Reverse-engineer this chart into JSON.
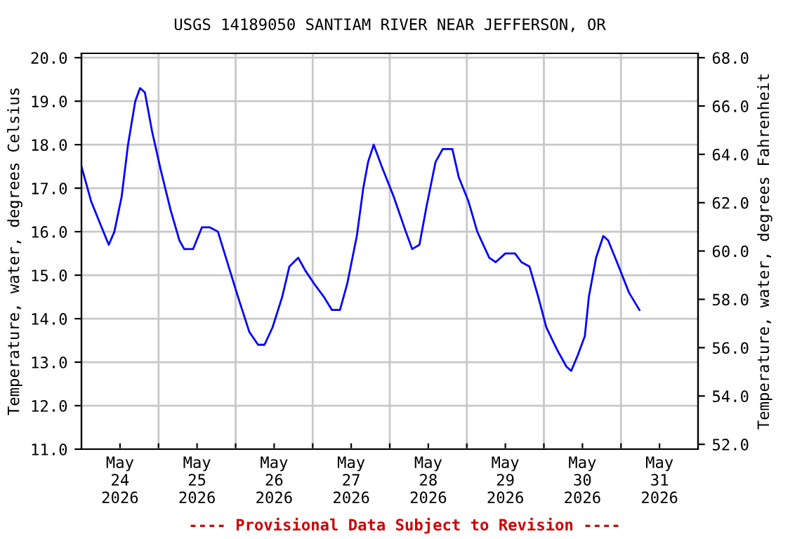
{
  "chart_data": {
    "type": "line",
    "title": "USGS 14189050 SANTIAM RIVER NEAR JEFFERSON, OR",
    "ylabel": "Temperature, water, degrees Celsius",
    "y2label": "Temperature, water, degrees Fahrenheit",
    "annotations": [
      "---- Provisional Data Subject to Revision ----"
    ],
    "x": [
      "2026-05-24T00:00",
      "2026-05-24T03:00",
      "2026-05-24T06:00",
      "2026-05-24T08:30",
      "2026-05-24T10:15",
      "2026-05-24T12:30",
      "2026-05-24T14:30",
      "2026-05-24T16:45",
      "2026-05-24T18:15",
      "2026-05-24T19:45",
      "2026-05-24T22:00",
      "2026-05-25T00:45",
      "2026-05-25T03:45",
      "2026-05-25T06:30",
      "2026-05-25T08:00",
      "2026-05-25T10:45",
      "2026-05-25T13:30",
      "2026-05-25T16:00",
      "2026-05-25T18:30",
      "2026-05-25T21:00",
      "2026-05-26T00:45",
      "2026-05-26T04:15",
      "2026-05-26T07:00",
      "2026-05-26T09:00",
      "2026-05-26T11:30",
      "2026-05-26T14:30",
      "2026-05-26T16:45",
      "2026-05-26T19:30",
      "2026-05-26T21:45",
      "2026-05-27T00:30",
      "2026-05-27T03:30",
      "2026-05-27T06:00",
      "2026-05-27T08:30",
      "2026-05-27T10:45",
      "2026-05-27T13:45",
      "2026-05-27T15:45",
      "2026-05-27T17:15",
      "2026-05-27T19:00",
      "2026-05-27T21:30",
      "2026-05-28T01:15",
      "2026-05-28T05:00",
      "2026-05-28T07:00",
      "2026-05-28T09:15",
      "2026-05-28T11:30",
      "2026-05-28T14:15",
      "2026-05-28T16:30",
      "2026-05-28T19:30",
      "2026-05-28T21:30",
      "2026-05-29T00:30",
      "2026-05-29T03:15",
      "2026-05-29T07:00",
      "2026-05-29T09:00",
      "2026-05-29T12:00",
      "2026-05-29T15:00",
      "2026-05-29T17:00",
      "2026-05-29T19:30",
      "2026-05-29T22:15",
      "2026-05-30T00:45",
      "2026-05-30T04:00",
      "2026-05-30T07:00",
      "2026-05-30T08:30",
      "2026-05-30T10:30",
      "2026-05-30T12:45",
      "2026-05-30T14:00",
      "2026-05-30T16:15",
      "2026-05-30T18:30",
      "2026-05-30T20:00",
      "2026-05-30T22:45",
      "2026-05-31T02:30",
      "2026-05-31T05:45"
    ],
    "series": [
      {
        "color": "#0000ff",
        "values": [
          17.5,
          16.7,
          16.15,
          15.7,
          16.0,
          16.8,
          18.0,
          19.0,
          19.3,
          19.2,
          18.3,
          17.4,
          16.5,
          15.8,
          15.6,
          15.6,
          16.1,
          16.1,
          16.0,
          15.4,
          14.5,
          13.7,
          13.4,
          13.4,
          13.8,
          14.5,
          15.2,
          15.4,
          15.1,
          14.8,
          14.5,
          14.2,
          14.2,
          14.8,
          15.9,
          17.0,
          17.6,
          18.0,
          17.5,
          16.8,
          16.0,
          15.6,
          15.7,
          16.6,
          17.6,
          17.9,
          17.9,
          17.25,
          16.7,
          16.0,
          15.4,
          15.3,
          15.5,
          15.5,
          15.3,
          15.2,
          14.5,
          13.8,
          13.3,
          12.9,
          12.8,
          13.15,
          13.6,
          14.5,
          15.4,
          15.9,
          15.8,
          15.3,
          14.6,
          14.2
        ]
      }
    ],
    "xlim": [
      "2026-05-24T00:00",
      "2026-06-01T00:00"
    ],
    "xticks": [
      {
        "value": "2026-05-24T12:00",
        "label": "May\n24\n2026"
      },
      {
        "value": "2026-05-25T00:00",
        "label": null
      },
      {
        "value": "2026-05-25T12:00",
        "label": "May\n25\n2026"
      },
      {
        "value": "2026-05-26T00:00",
        "label": null
      },
      {
        "value": "2026-05-26T12:00",
        "label": "May\n26\n2026"
      },
      {
        "value": "2026-05-27T00:00",
        "label": null
      },
      {
        "value": "2026-05-27T12:00",
        "label": "May\n27\n2026"
      },
      {
        "value": "2026-05-28T00:00",
        "label": null
      },
      {
        "value": "2026-05-28T12:00",
        "label": "May\n28\n2026"
      },
      {
        "value": "2026-05-29T00:00",
        "label": null
      },
      {
        "value": "2026-05-29T12:00",
        "label": "May\n29\n2026"
      },
      {
        "value": "2026-05-30T00:00",
        "label": null
      },
      {
        "value": "2026-05-30T12:00",
        "label": "May\n30\n2026"
      },
      {
        "value": "2026-05-31T00:00",
        "label": null
      },
      {
        "value": "2026-05-31T12:00",
        "label": "May\n31\n2026"
      }
    ],
    "ylim": [
      11,
      20.1
    ],
    "yticks": [
      {
        "value": 11,
        "label": "11.0"
      },
      {
        "value": 12,
        "label": "12.0"
      },
      {
        "value": 13,
        "label": "13.0"
      },
      {
        "value": 14,
        "label": "14.0"
      },
      {
        "value": 15,
        "label": "15.0"
      },
      {
        "value": 16,
        "label": "16.0"
      },
      {
        "value": 17,
        "label": "17.0"
      },
      {
        "value": 18,
        "label": "18.0"
      },
      {
        "value": 19,
        "label": "19.0"
      },
      {
        "value": 20,
        "label": "20.0"
      }
    ],
    "y2lim": [
      51.8,
      68.18
    ],
    "y2ticks": [
      {
        "value": 52,
        "label": "52.0"
      },
      {
        "value": 54,
        "label": "54.0"
      },
      {
        "value": 56,
        "label": "56.0"
      },
      {
        "value": 58,
        "label": "58.0"
      },
      {
        "value": 60,
        "label": "60.0"
      },
      {
        "value": 62,
        "label": "62.0"
      },
      {
        "value": 64,
        "label": "64.0"
      },
      {
        "value": 66,
        "label": "66.0"
      },
      {
        "value": 68,
        "label": "68.0"
      }
    ],
    "grid": true,
    "line_style": "solid"
  }
}
